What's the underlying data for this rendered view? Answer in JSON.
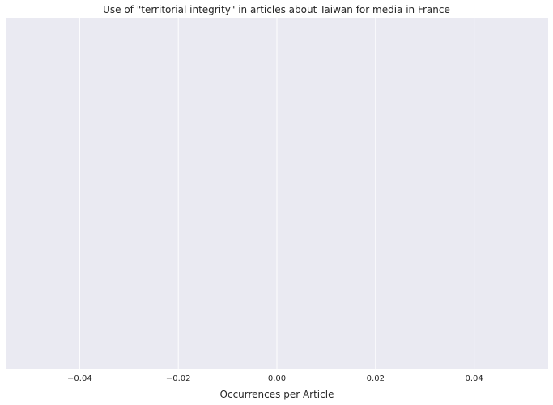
{
  "chart_data": {
    "type": "bar",
    "title": "Use of \"territorial integrity\" in articles about Taiwan for media in France",
    "xlabel": "Occurrences per Article",
    "ylabel": "",
    "categories": [],
    "values": [],
    "xlim": [
      -0.055,
      0.055
    ],
    "xticks": [
      -0.04,
      -0.02,
      0.0,
      0.02,
      0.04
    ],
    "xtick_labels": [
      "−0.04",
      "−0.02",
      "0.00",
      "0.02",
      "0.04"
    ],
    "grid": true,
    "background_color": "#eaeaf2",
    "grid_color": "#ffffff"
  }
}
